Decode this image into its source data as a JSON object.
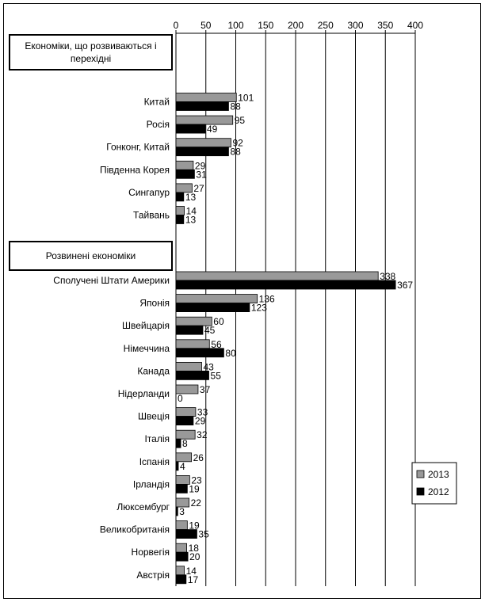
{
  "chart_data": {
    "type": "bar",
    "orientation": "horizontal",
    "title": "",
    "xlabel": "",
    "ylabel": "",
    "xlim": [
      0,
      400
    ],
    "xticks": [
      0,
      50,
      100,
      150,
      200,
      250,
      300,
      350,
      400
    ],
    "grid": "vertical",
    "legend_position": "bottom-right",
    "series": [
      {
        "name": "2013",
        "color": "#999999"
      },
      {
        "name": "2012",
        "color": "#000000"
      }
    ],
    "groups": [
      {
        "label": "Економіки, що розвиваються і перехідні",
        "label_lines": [
          "Економіки, що розвиваються і",
          "перехідні"
        ],
        "items": [
          {
            "label": "Китай",
            "values": [
              101,
              88
            ]
          },
          {
            "label": "Росія",
            "values": [
              95,
              49
            ]
          },
          {
            "label": "Гонконг, Китай",
            "values": [
              92,
              88
            ]
          },
          {
            "label": "Південна Корея",
            "values": [
              29,
              31
            ]
          },
          {
            "label": "Сингапур",
            "values": [
              27,
              13
            ]
          },
          {
            "label": "Тайвань",
            "values": [
              14,
              13
            ]
          }
        ]
      },
      {
        "label": "Розвинені економіки",
        "label_lines": [
          "Розвинені економіки"
        ],
        "items": [
          {
            "label": "Сполучені Штати Америки",
            "values": [
              338,
              367
            ]
          },
          {
            "label": "Японія",
            "values": [
              136,
              123
            ]
          },
          {
            "label": "Швейцарія",
            "values": [
              60,
              45
            ]
          },
          {
            "label": "Німеччина",
            "values": [
              56,
              80
            ]
          },
          {
            "label": "Канада",
            "values": [
              43,
              55
            ]
          },
          {
            "label": "Нідерланди",
            "values": [
              37,
              0
            ]
          },
          {
            "label": "Швеція",
            "values": [
              33,
              29
            ]
          },
          {
            "label": "Італія",
            "values": [
              32,
              8
            ]
          },
          {
            "label": "Іспанія",
            "values": [
              26,
              4
            ]
          },
          {
            "label": "Ірландія",
            "values": [
              23,
              19
            ]
          },
          {
            "label": "Люксембург",
            "values": [
              22,
              3
            ]
          },
          {
            "label": "Великобританія",
            "values": [
              19,
              35
            ]
          },
          {
            "label": "Норвегія",
            "values": [
              18,
              20
            ]
          },
          {
            "label": "Австрія",
            "values": [
              14,
              17
            ]
          }
        ]
      }
    ]
  }
}
